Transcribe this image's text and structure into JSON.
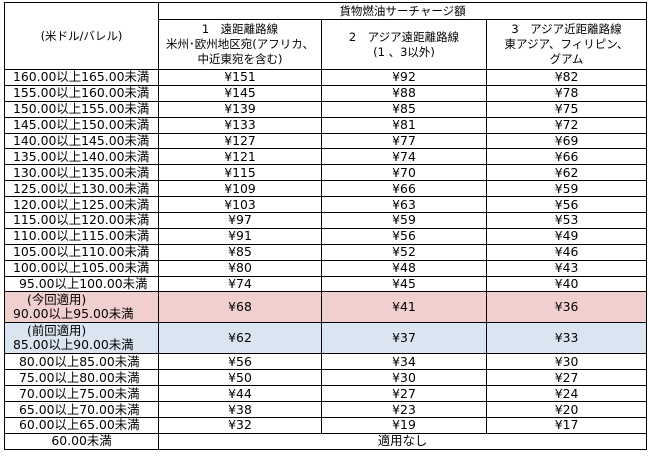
{
  "header": {
    "unit_label": "(米ドル/バレル)",
    "group_title": "貨物燃油サーチャージ額",
    "col1": [
      "1　遠距離路線",
      "米州･欧州地区宛(アフリカ、",
      "中近東宛を含む)"
    ],
    "col2": [
      "2　アジア遠距離路線",
      "(1 、3以外)"
    ],
    "col3": [
      "3　アジア近距離路線",
      "東アジア、フィリピン、",
      "グアム"
    ]
  },
  "rows": [
    {
      "range": "160.00以上165.00未満",
      "c1": "¥151",
      "c2": "¥92",
      "c3": "¥82"
    },
    {
      "range": "155.00以上160.00未満",
      "c1": "¥145",
      "c2": "¥88",
      "c3": "¥78"
    },
    {
      "range": "150.00以上155.00未満",
      "c1": "¥139",
      "c2": "¥85",
      "c3": "¥75"
    },
    {
      "range": "145.00以上150.00未満",
      "c1": "¥133",
      "c2": "¥81",
      "c3": "¥72"
    },
    {
      "range": "140.00以上145.00未満",
      "c1": "¥127",
      "c2": "¥77",
      "c3": "¥69"
    },
    {
      "range": "135.00以上140.00未満",
      "c1": "¥121",
      "c2": "¥74",
      "c3": "¥66"
    },
    {
      "range": "130.00以上135.00未満",
      "c1": "¥115",
      "c2": "¥70",
      "c3": "¥62"
    },
    {
      "range": "125.00以上130.00未満",
      "c1": "¥109",
      "c2": "¥66",
      "c3": "¥59"
    },
    {
      "range": "120.00以上125.00未満",
      "c1": "¥103",
      "c2": "¥63",
      "c3": "¥56"
    },
    {
      "range": "115.00以上120.00未満",
      "c1": "¥97",
      "c2": "¥59",
      "c3": "¥53"
    },
    {
      "range": "110.00以上115.00未満",
      "c1": "¥91",
      "c2": "¥56",
      "c3": "¥49"
    },
    {
      "range": "105.00以上110.00未満",
      "c1": "¥85",
      "c2": "¥52",
      "c3": "¥46"
    },
    {
      "range": "100.00以上105.00未満",
      "c1": "¥80",
      "c2": "¥48",
      "c3": "¥43"
    },
    {
      "range": " 95.00以上100.00未満",
      "c1": "¥74",
      "c2": "¥45",
      "c3": "¥40"
    }
  ],
  "current": {
    "label": "(今回適用)",
    "range": "90.00以上95.00未満",
    "c1": "¥68",
    "c2": "¥41",
    "c3": "¥36"
  },
  "previous": {
    "label": "(前回適用)",
    "range": "85.00以上90.00未満",
    "c1": "¥62",
    "c2": "¥37",
    "c3": "¥33"
  },
  "rows_low": [
    {
      "range": "80.00以上85.00未満",
      "c1": "¥56",
      "c2": "¥34",
      "c3": "¥30"
    },
    {
      "range": "75.00以上80.00未満",
      "c1": "¥50",
      "c2": "¥30",
      "c3": "¥27"
    },
    {
      "range": "70.00以上75.00未満",
      "c1": "¥44",
      "c2": "¥27",
      "c3": "¥24"
    },
    {
      "range": "65.00以上70.00未満",
      "c1": "¥38",
      "c2": "¥23",
      "c3": "¥20"
    },
    {
      "range": "60.00以上65.00未満",
      "c1": "¥32",
      "c2": "¥19",
      "c3": "¥17"
    }
  ],
  "none_row": {
    "range": "60.00未満",
    "value": "適用なし"
  },
  "colors": {
    "current_bg": "#f2cfcf",
    "previous_bg": "#dbe5f1"
  }
}
